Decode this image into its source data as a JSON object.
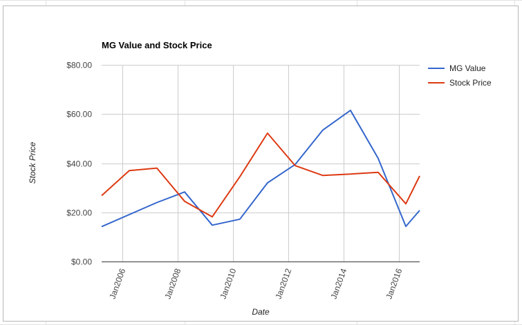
{
  "chart_data": {
    "type": "line",
    "title": "MG Value and Stock Price",
    "xlabel": "Date",
    "ylabel": "Stock Price",
    "xlim": [
      "2005-04-01",
      "2016-10-01"
    ],
    "ylim": [
      0,
      80
    ],
    "yticks": [
      {
        "value": 0,
        "label": "$0.00"
      },
      {
        "value": 20,
        "label": "$20.00"
      },
      {
        "value": 40,
        "label": "$40.00"
      },
      {
        "value": 60,
        "label": "$60.00"
      },
      {
        "value": 80,
        "label": "$80.00"
      }
    ],
    "xticks": [
      {
        "date": "2006-01-01",
        "label": "Jan2006"
      },
      {
        "date": "2008-01-01",
        "label": "Jan2008"
      },
      {
        "date": "2010-01-01",
        "label": "Jan2010"
      },
      {
        "date": "2012-01-01",
        "label": "Jan2012"
      },
      {
        "date": "2014-01-01",
        "label": "Jan2014"
      },
      {
        "date": "2016-01-01",
        "label": "Jan2016"
      }
    ],
    "grid": true,
    "legend": "right",
    "series": [
      {
        "name": "MG Value",
        "color": "#3366cc",
        "points": [
          {
            "x": "2005-04-01",
            "y": 14.2
          },
          {
            "x": "2007-04-01",
            "y": 24.0
          },
          {
            "x": "2008-04-01",
            "y": 28.3
          },
          {
            "x": "2009-04-01",
            "y": 14.8
          },
          {
            "x": "2010-04-01",
            "y": 17.2
          },
          {
            "x": "2011-04-01",
            "y": 32.0
          },
          {
            "x": "2012-04-01",
            "y": 39.5
          },
          {
            "x": "2013-04-01",
            "y": 53.5
          },
          {
            "x": "2014-04-01",
            "y": 61.5
          },
          {
            "x": "2015-04-01",
            "y": 42.0
          },
          {
            "x": "2016-04-01",
            "y": 14.3
          },
          {
            "x": "2016-10-01",
            "y": 20.8
          }
        ]
      },
      {
        "name": "Stock Price",
        "color": "#dc3912",
        "points": [
          {
            "x": "2005-04-01",
            "y": 26.8
          },
          {
            "x": "2006-04-01",
            "y": 37.0
          },
          {
            "x": "2007-04-01",
            "y": 38.0
          },
          {
            "x": "2008-04-01",
            "y": 24.5
          },
          {
            "x": "2009-04-01",
            "y": 18.2
          },
          {
            "x": "2010-04-01",
            "y": 34.5
          },
          {
            "x": "2011-04-01",
            "y": 52.2
          },
          {
            "x": "2012-04-01",
            "y": 39.0
          },
          {
            "x": "2013-04-01",
            "y": 35.0
          },
          {
            "x": "2014-04-01",
            "y": 35.6
          },
          {
            "x": "2015-04-01",
            "y": 36.3
          },
          {
            "x": "2016-04-01",
            "y": 23.5
          },
          {
            "x": "2016-10-01",
            "y": 34.8
          }
        ]
      }
    ]
  }
}
